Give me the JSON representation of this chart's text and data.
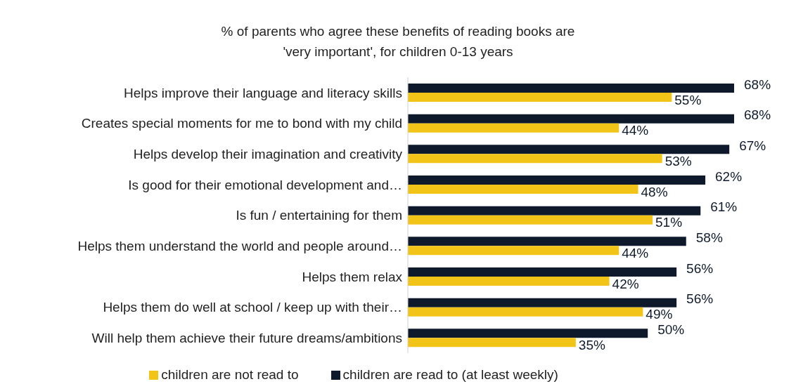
{
  "chart_data": {
    "type": "bar",
    "orientation": "horizontal",
    "title": "% of parents who agree these benefits of reading books are\n'very important', for children 0-13 years",
    "categories": [
      "Helps improve their language and literacy skills",
      "Creates special moments for me to bond with my child",
      "Helps develop their imagination and creativity",
      "Is good for their emotional development and…",
      "Is fun / entertaining for them",
      "Helps them understand the world and people around…",
      "Helps them relax",
      "Helps them do well at school / keep up with their…",
      "Will help them achieve their future dreams/ambitions"
    ],
    "series": [
      {
        "name": "children are read to (at least weekly)",
        "color": "#0e1a2b",
        "values": [
          68,
          68,
          67,
          62,
          61,
          58,
          56,
          56,
          50
        ],
        "value_labels": [
          "68%",
          "68%",
          "67%",
          "62%",
          "61%",
          "58%",
          "56%",
          "56%",
          "50%"
        ]
      },
      {
        "name": "children are not read to",
        "color": "#f2c417",
        "values": [
          55,
          44,
          53,
          48,
          51,
          44,
          42,
          49,
          35
        ],
        "value_labels": [
          "55%",
          "44%",
          "53%",
          "48%",
          "51%",
          "44%",
          "42%",
          "49%",
          "35%"
        ]
      }
    ],
    "legend": "bottom"
  }
}
